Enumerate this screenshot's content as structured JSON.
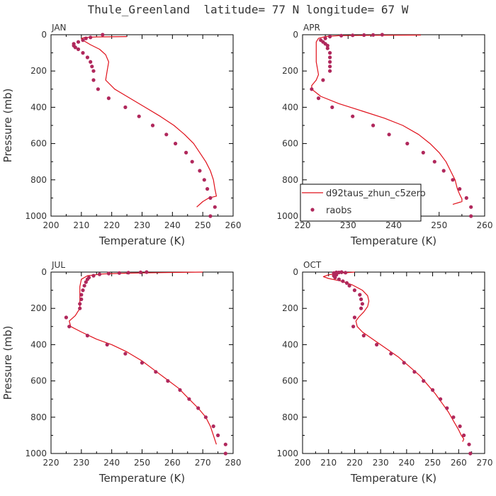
{
  "title": "Thule_Greenland  latitude= 77 N longitude= 67 W",
  "colors": {
    "model_line": "#e0101a",
    "raobs_dot": "#b0285c",
    "axis": "#000000",
    "text": "#333333"
  },
  "legend": {
    "model_label": "d92taus_zhun_c5zero",
    "obs_label": "raobs",
    "placement": "lower-right of APR panel"
  },
  "chart_data": [
    {
      "type": "line",
      "panel": "JAN",
      "xlabel": "Temperature (K)",
      "ylabel": "Pressure (mb)",
      "xlim": [
        200,
        260
      ],
      "ylim": [
        1000,
        0
      ],
      "xticks": [
        200,
        210,
        220,
        230,
        240,
        250,
        260
      ],
      "yticks": [
        0,
        200,
        400,
        600,
        800,
        1000
      ],
      "series": [
        {
          "name": "d92taus_zhun_c5zero",
          "kind": "line",
          "points": [
            [
              225,
              10
            ],
            [
              215,
              12
            ],
            [
              211,
              15
            ],
            [
              210,
              22
            ],
            [
              211,
              35
            ],
            [
              213,
              55
            ],
            [
              216,
              80
            ],
            [
              218,
              110
            ],
            [
              219,
              150
            ],
            [
              218.5,
              200
            ],
            [
              218,
              250
            ],
            [
              221,
              300
            ],
            [
              226,
              350
            ],
            [
              231,
              400
            ],
            [
              236,
              450
            ],
            [
              240.5,
              500
            ],
            [
              244,
              550
            ],
            [
              247,
              600
            ],
            [
              249,
              650
            ],
            [
              251,
              700
            ],
            [
              252.5,
              750
            ],
            [
              253.5,
              800
            ],
            [
              254,
              850
            ],
            [
              254.5,
              890
            ],
            [
              252,
              900
            ],
            [
              250,
              920
            ],
            [
              248,
              950
            ]
          ]
        },
        {
          "name": "raobs",
          "kind": "scatter",
          "points": [
            [
              217,
              0
            ],
            [
              213,
              15
            ],
            [
              211.5,
              20
            ],
            [
              210.5,
              30
            ],
            [
              209,
              40
            ],
            [
              207.5,
              50
            ],
            [
              207.5,
              60
            ],
            [
              208,
              70
            ],
            [
              209,
              80
            ],
            [
              210.5,
              100
            ],
            [
              212,
              125
            ],
            [
              213,
              150
            ],
            [
              213.5,
              175
            ],
            [
              214,
              200
            ],
            [
              214,
              250
            ],
            [
              215.5,
              300
            ],
            [
              219,
              350
            ],
            [
              224.5,
              400
            ],
            [
              229,
              450
            ],
            [
              233.5,
              500
            ],
            [
              238,
              550
            ],
            [
              241,
              600
            ],
            [
              244.5,
              650
            ],
            [
              246.5,
              700
            ],
            [
              249,
              750
            ],
            [
              250.5,
              800
            ],
            [
              251.5,
              850
            ],
            [
              252.5,
              900
            ],
            [
              254,
              950
            ],
            [
              252.5,
              1000
            ]
          ]
        }
      ]
    },
    {
      "type": "line",
      "panel": "APR",
      "xlabel": "Temperature (K)",
      "ylabel": "",
      "xlim": [
        220,
        260
      ],
      "ylim": [
        1000,
        0
      ],
      "xticks": [
        220,
        230,
        240,
        250,
        260
      ],
      "yticks": [
        0,
        200,
        400,
        600,
        800,
        1000
      ],
      "series": [
        {
          "name": "d92taus_zhun_c5zero",
          "kind": "line",
          "points": [
            [
              246,
              2
            ],
            [
              235,
              3
            ],
            [
              228,
              5
            ],
            [
              225,
              10
            ],
            [
              223.5,
              20
            ],
            [
              223,
              40
            ],
            [
              223,
              80
            ],
            [
              223,
              150
            ],
            [
              223.5,
              220
            ],
            [
              223,
              250
            ],
            [
              222,
              280
            ],
            [
              222,
              300
            ],
            [
              224,
              340
            ],
            [
              228,
              380
            ],
            [
              233,
              420
            ],
            [
              238,
              460
            ],
            [
              242,
              500
            ],
            [
              245.5,
              550
            ],
            [
              248,
              600
            ],
            [
              250,
              650
            ],
            [
              251.5,
              700
            ],
            [
              252.5,
              750
            ],
            [
              253.5,
              800
            ],
            [
              254,
              850
            ],
            [
              254.5,
              880
            ],
            [
              255,
              905
            ],
            [
              255,
              920
            ],
            [
              253,
              935
            ]
          ]
        },
        {
          "name": "raobs",
          "kind": "scatter",
          "points": [
            [
              237.5,
              0
            ],
            [
              235.5,
              1
            ],
            [
              233.5,
              2
            ],
            [
              231,
              3
            ],
            [
              228.5,
              5
            ],
            [
              226,
              10
            ],
            [
              225,
              20
            ],
            [
              224,
              30
            ],
            [
              224.5,
              40
            ],
            [
              225,
              50
            ],
            [
              225.5,
              60
            ],
            [
              225.5,
              75
            ],
            [
              226,
              100
            ],
            [
              226,
              125
            ],
            [
              226,
              150
            ],
            [
              226,
              175
            ],
            [
              226,
              200
            ],
            [
              224.5,
              250
            ],
            [
              222,
              300
            ],
            [
              223.5,
              350
            ],
            [
              226.5,
              400
            ],
            [
              231,
              450
            ],
            [
              235.5,
              500
            ],
            [
              239,
              550
            ],
            [
              243,
              600
            ],
            [
              246.5,
              650
            ],
            [
              249,
              700
            ],
            [
              251,
              750
            ],
            [
              253,
              800
            ],
            [
              254.5,
              850
            ],
            [
              256,
              900
            ],
            [
              257,
              950
            ],
            [
              257,
              1000
            ]
          ]
        }
      ]
    },
    {
      "type": "line",
      "panel": "JUL",
      "xlabel": "Temperature (K)",
      "ylabel": "Pressure (mb)",
      "xlim": [
        220,
        280
      ],
      "ylim": [
        1000,
        0
      ],
      "xticks": [
        220,
        230,
        240,
        250,
        260,
        270,
        280
      ],
      "yticks": [
        0,
        200,
        400,
        600,
        800,
        1000
      ],
      "series": [
        {
          "name": "d92taus_zhun_c5zero",
          "kind": "line",
          "points": [
            [
              270,
              0
            ],
            [
              255,
              3
            ],
            [
              245,
              6
            ],
            [
              237,
              10
            ],
            [
              232,
              20
            ],
            [
              230,
              40
            ],
            [
              229.5,
              80
            ],
            [
              229.5,
              150
            ],
            [
              229.5,
              200
            ],
            [
              228,
              240
            ],
            [
              226,
              270
            ],
            [
              226.5,
              300
            ],
            [
              230,
              330
            ],
            [
              235,
              370
            ],
            [
              240,
              400
            ],
            [
              245,
              440
            ],
            [
              250,
              490
            ],
            [
              254,
              540
            ],
            [
              258,
              590
            ],
            [
              262,
              640
            ],
            [
              265.5,
              700
            ],
            [
              268.5,
              750
            ],
            [
              271,
              800
            ],
            [
              272.5,
              850
            ],
            [
              273.5,
              900
            ],
            [
              274.5,
              950
            ]
          ]
        },
        {
          "name": "raobs",
          "kind": "scatter",
          "points": [
            [
              251.5,
              0
            ],
            [
              249.5,
              1
            ],
            [
              245.5,
              3
            ],
            [
              242.5,
              5
            ],
            [
              239,
              8
            ],
            [
              236,
              12
            ],
            [
              234,
              20
            ],
            [
              232.5,
              30
            ],
            [
              232,
              40
            ],
            [
              231.5,
              55
            ],
            [
              231,
              75
            ],
            [
              230.5,
              100
            ],
            [
              230,
              125
            ],
            [
              230,
              150
            ],
            [
              229.5,
              175
            ],
            [
              229.5,
              200
            ],
            [
              225,
              250
            ],
            [
              226,
              300
            ],
            [
              232,
              350
            ],
            [
              238.5,
              400
            ],
            [
              244.5,
              450
            ],
            [
              250,
              500
            ],
            [
              254.5,
              550
            ],
            [
              258.5,
              600
            ],
            [
              262.5,
              650
            ],
            [
              265.5,
              700
            ],
            [
              268.5,
              750
            ],
            [
              271,
              800
            ],
            [
              273.5,
              850
            ],
            [
              275,
              900
            ],
            [
              277.5,
              950
            ],
            [
              277.5,
              1000
            ]
          ]
        }
      ]
    },
    {
      "type": "line",
      "panel": "OCT",
      "xlabel": "Temperature (K)",
      "ylabel": "",
      "xlim": [
        200,
        270
      ],
      "ylim": [
        1000,
        0
      ],
      "xticks": [
        200,
        210,
        220,
        230,
        240,
        250,
        260,
        270
      ],
      "yticks": [
        0,
        200,
        400,
        600,
        800,
        1000
      ],
      "series": [
        {
          "name": "d92taus_zhun_c5zero",
          "kind": "line",
          "points": [
            [
              220,
              0
            ],
            [
              215,
              5
            ],
            [
              210,
              15
            ],
            [
              208,
              25
            ],
            [
              210,
              35
            ],
            [
              215,
              50
            ],
            [
              219,
              70
            ],
            [
              223,
              100
            ],
            [
              225,
              130
            ],
            [
              225.5,
              160
            ],
            [
              225,
              190
            ],
            [
              223.5,
              220
            ],
            [
              221.5,
              250
            ],
            [
              220.5,
              270
            ],
            [
              221,
              300
            ],
            [
              223,
              330
            ],
            [
              227,
              370
            ],
            [
              232,
              420
            ],
            [
              237,
              470
            ],
            [
              241,
              520
            ],
            [
              245,
              570
            ],
            [
              248,
              620
            ],
            [
              251,
              670
            ],
            [
              253.5,
              720
            ],
            [
              256,
              770
            ],
            [
              258,
              820
            ],
            [
              260,
              870
            ],
            [
              261,
              900
            ],
            [
              262,
              920
            ],
            [
              261.5,
              935
            ]
          ]
        },
        {
          "name": "raobs",
          "kind": "scatter",
          "points": [
            [
              215,
              0
            ],
            [
              213,
              1
            ],
            [
              214,
              2
            ],
            [
              216.5,
              3
            ],
            [
              212,
              5
            ],
            [
              213,
              10
            ],
            [
              213,
              15
            ],
            [
              212,
              20
            ],
            [
              212.5,
              30
            ],
            [
              214,
              40
            ],
            [
              215.5,
              50
            ],
            [
              217,
              60
            ],
            [
              218,
              75
            ],
            [
              220,
              100
            ],
            [
              222,
              125
            ],
            [
              222.5,
              150
            ],
            [
              223,
              175
            ],
            [
              222.5,
              200
            ],
            [
              220,
              250
            ],
            [
              219.5,
              300
            ],
            [
              223.5,
              350
            ],
            [
              228.5,
              400
            ],
            [
              234,
              450
            ],
            [
              239,
              500
            ],
            [
              243,
              550
            ],
            [
              246.5,
              600
            ],
            [
              250,
              650
            ],
            [
              253,
              700
            ],
            [
              255.5,
              750
            ],
            [
              258,
              800
            ],
            [
              260.5,
              850
            ],
            [
              262,
              900
            ],
            [
              264,
              950
            ],
            [
              264.5,
              1000
            ]
          ]
        }
      ]
    }
  ]
}
